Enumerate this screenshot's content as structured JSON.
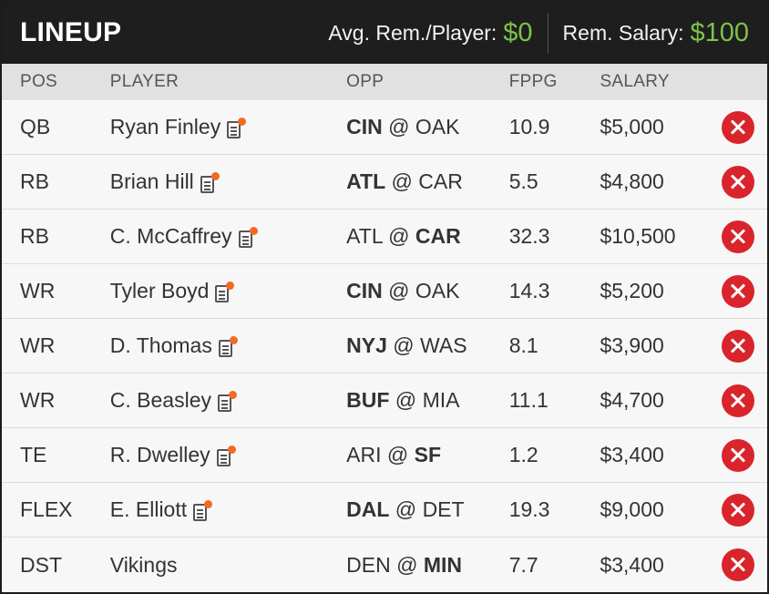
{
  "header": {
    "title": "LINEUP",
    "avg_label": "Avg. Rem./Player:",
    "avg_value": "$0",
    "rem_label": "Rem. Salary:",
    "rem_value": "$100"
  },
  "columns": {
    "pos": "POS",
    "player": "PLAYER",
    "opp": "OPP",
    "fppg": "FPPG",
    "salary": "SALARY"
  },
  "colors": {
    "header_bg": "#1e1e1e",
    "money_green": "#7fc24a",
    "remove_red": "#d9242b",
    "news_dot_orange": "#f26a22"
  },
  "rows": [
    {
      "pos": "QB",
      "player": "Ryan Finley",
      "has_news": true,
      "opp_away": "CIN",
      "opp_home": "OAK",
      "bold": "away",
      "fppg": "10.9",
      "salary": "$5,000"
    },
    {
      "pos": "RB",
      "player": "Brian Hill",
      "has_news": true,
      "opp_away": "ATL",
      "opp_home": "CAR",
      "bold": "away",
      "fppg": "5.5",
      "salary": "$4,800"
    },
    {
      "pos": "RB",
      "player": "C. McCaffrey",
      "has_news": true,
      "opp_away": "ATL",
      "opp_home": "CAR",
      "bold": "home",
      "fppg": "32.3",
      "salary": "$10,500"
    },
    {
      "pos": "WR",
      "player": "Tyler Boyd",
      "has_news": true,
      "opp_away": "CIN",
      "opp_home": "OAK",
      "bold": "away",
      "fppg": "14.3",
      "salary": "$5,200"
    },
    {
      "pos": "WR",
      "player": "D. Thomas",
      "has_news": true,
      "opp_away": "NYJ",
      "opp_home": "WAS",
      "bold": "away",
      "fppg": "8.1",
      "salary": "$3,900"
    },
    {
      "pos": "WR",
      "player": "C. Beasley",
      "has_news": true,
      "opp_away": "BUF",
      "opp_home": "MIA",
      "bold": "away",
      "fppg": "11.1",
      "salary": "$4,700"
    },
    {
      "pos": "TE",
      "player": "R. Dwelley",
      "has_news": true,
      "opp_away": "ARI",
      "opp_home": "SF",
      "bold": "home",
      "fppg": "1.2",
      "salary": "$3,400"
    },
    {
      "pos": "FLEX",
      "player": "E. Elliott",
      "has_news": true,
      "opp_away": "DAL",
      "opp_home": "DET",
      "bold": "away",
      "fppg": "19.3",
      "salary": "$9,000"
    },
    {
      "pos": "DST",
      "player": "Vikings",
      "has_news": false,
      "opp_away": "DEN",
      "opp_home": "MIN",
      "bold": "home",
      "fppg": "7.7",
      "salary": "$3,400"
    }
  ]
}
